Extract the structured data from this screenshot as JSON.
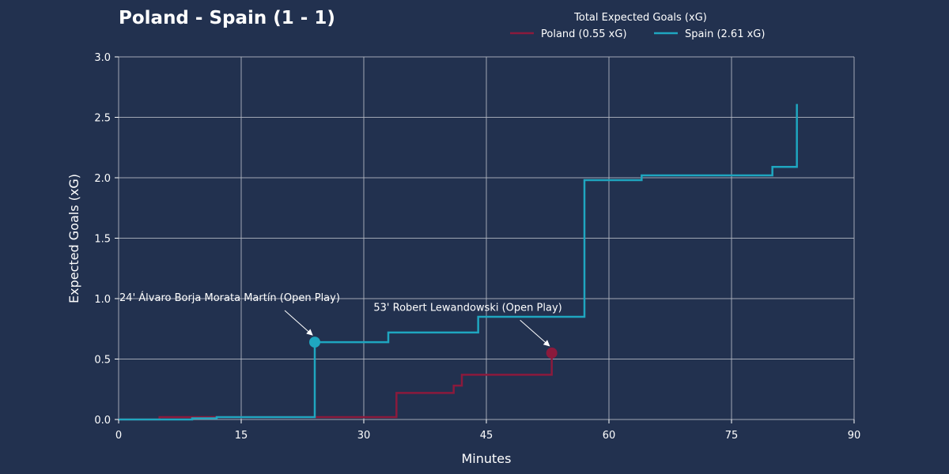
{
  "chart_data": {
    "type": "line",
    "title": "Poland - Spain (1 - 1)",
    "xlabel": "Minutes",
    "ylabel": "Expected Goals (xG)",
    "xlim": [
      0,
      90
    ],
    "ylim": [
      0,
      3.0
    ],
    "x_ticks": [
      "0",
      "15",
      "30",
      "45",
      "60",
      "75",
      "90"
    ],
    "y_ticks": [
      "0.0",
      "0.5",
      "1.0",
      "1.5",
      "2.0",
      "2.5",
      "3.0"
    ],
    "grid": true,
    "legend": {
      "title": "Total Expected Goals (xG)",
      "placement": "top-right"
    },
    "series": [
      {
        "name": "Poland (0.55 xG)",
        "color": "#8b1a3c",
        "step_points": [
          {
            "x": 0,
            "y": 0
          },
          {
            "x": 5,
            "y": 0.02
          },
          {
            "x": 34,
            "y": 0.22
          },
          {
            "x": 41,
            "y": 0.28
          },
          {
            "x": 42,
            "y": 0.37
          },
          {
            "x": 53,
            "y": 0.55
          }
        ],
        "end_x": 53
      },
      {
        "name": "Spain (2.61 xG)",
        "color": "#1fa6c0",
        "step_points": [
          {
            "x": 0,
            "y": 0
          },
          {
            "x": 9,
            "y": 0.01
          },
          {
            "x": 12,
            "y": 0.02
          },
          {
            "x": 24,
            "y": 0.64
          },
          {
            "x": 33,
            "y": 0.72
          },
          {
            "x": 44,
            "y": 0.85
          },
          {
            "x": 57,
            "y": 1.98
          },
          {
            "x": 64,
            "y": 2.02
          },
          {
            "x": 80,
            "y": 2.09
          },
          {
            "x": 83,
            "y": 2.61
          }
        ],
        "end_x": 83
      }
    ],
    "goals": [
      {
        "series": 1,
        "x": 24,
        "y": 0.64,
        "label": "24' Álvaro Borja Morata Martín (Open Play)",
        "text_x": 0.1,
        "text_y": 0.98
      },
      {
        "series": 0,
        "x": 53,
        "y": 0.55,
        "label": "53' Robert Lewandowski (Open Play)",
        "text_x": 31.2,
        "text_y": 0.9
      }
    ]
  }
}
